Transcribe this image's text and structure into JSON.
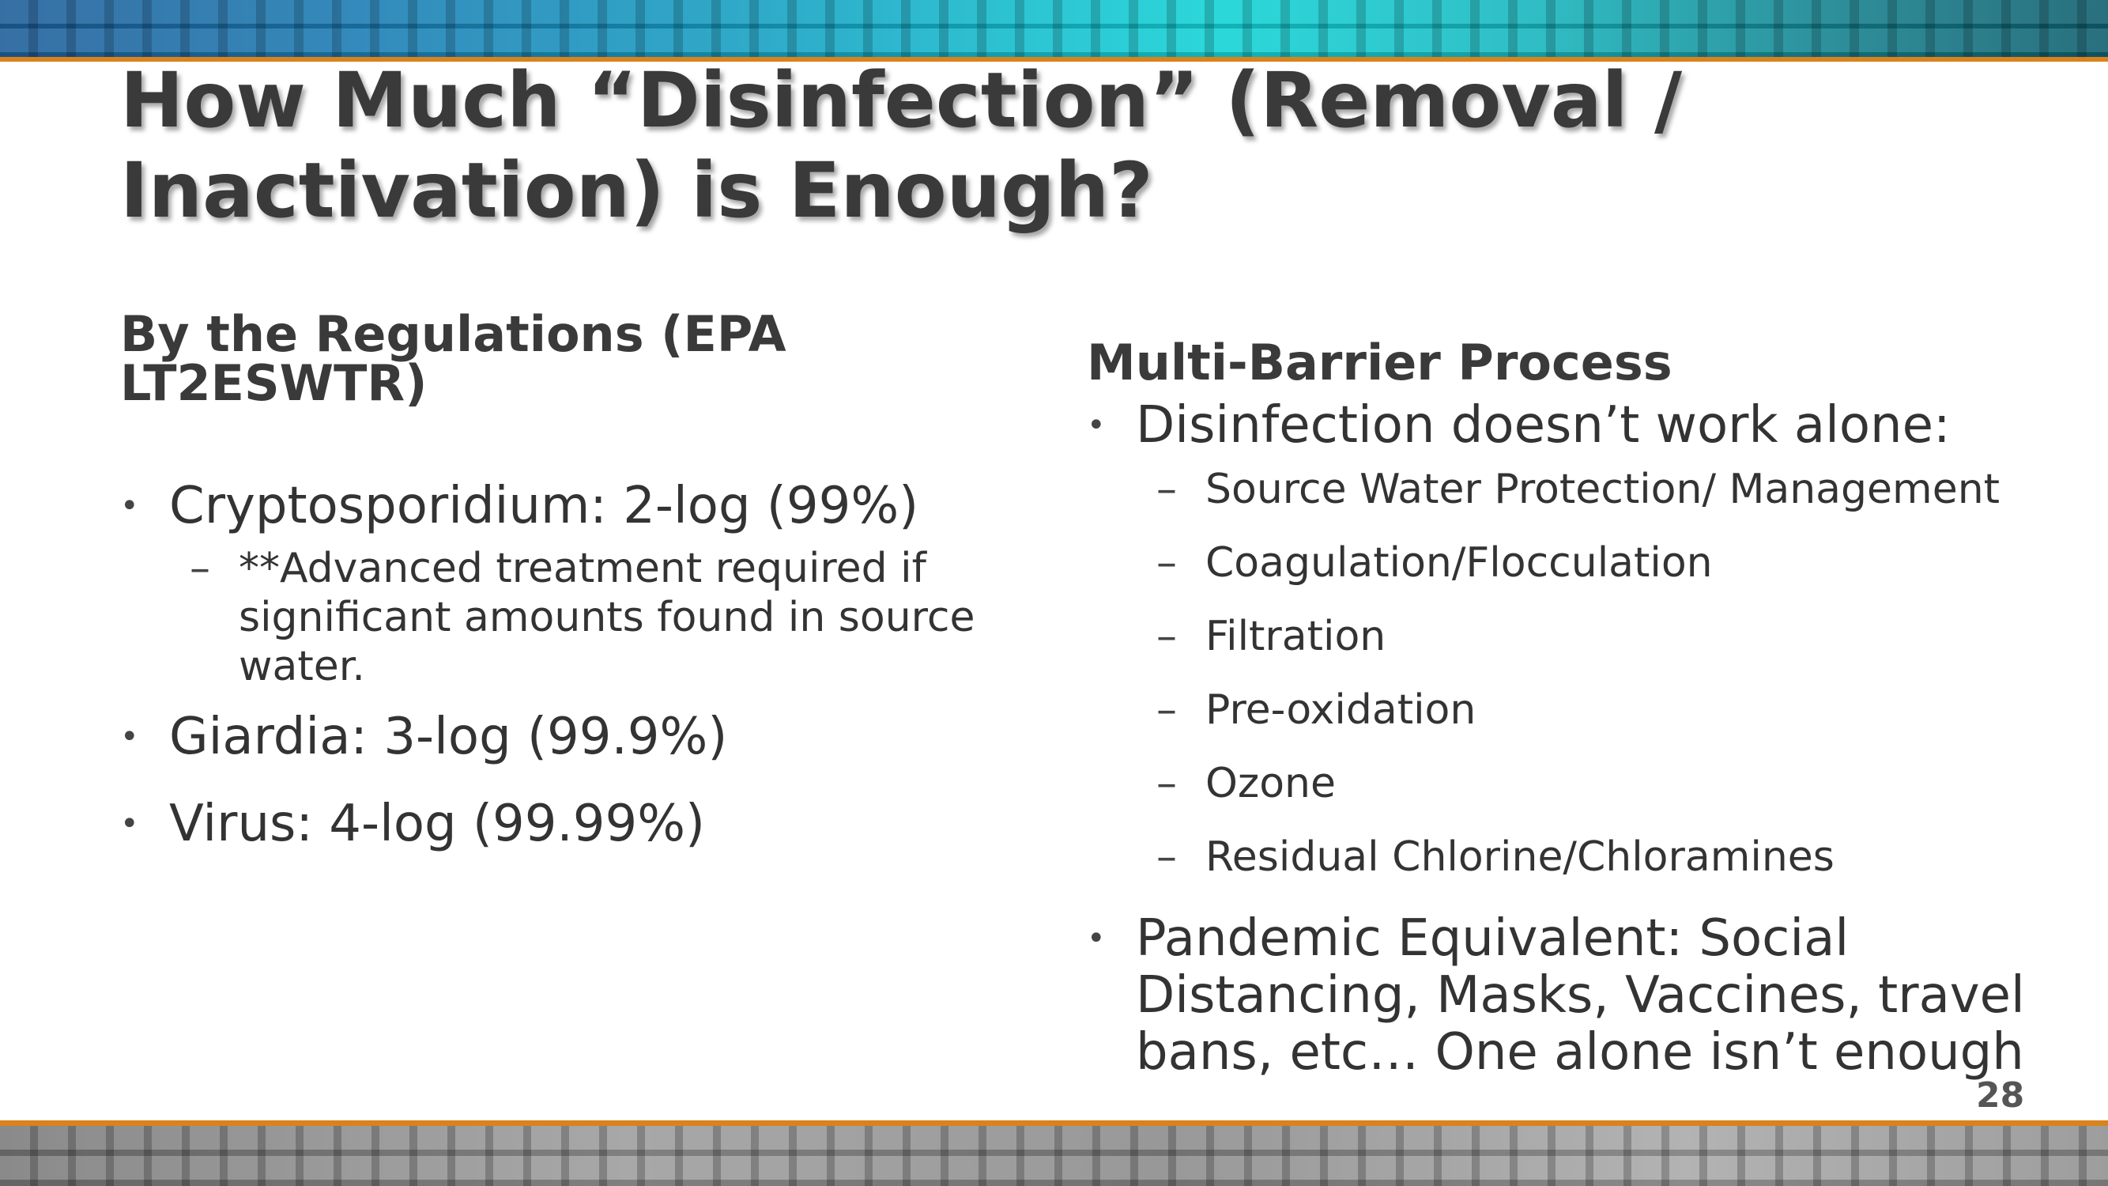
{
  "title": "How Much “Disinfection” (Removal / Inactivation) is Enough?",
  "left": {
    "heading": "By the Regulations (EPA LT2ESWTR)",
    "bullets": [
      {
        "text": "Cryptosporidium: 2-log (99%)",
        "subs": [
          "**Advanced treatment required if significant amounts found in source water."
        ]
      },
      {
        "text": "Giardia: 3-log (99.9%)"
      },
      {
        "text": "Virus: 4-log (99.99%)"
      }
    ]
  },
  "right": {
    "heading": "Multi-Barrier Process",
    "bullets": [
      {
        "text": "Disinfection doesn’t work alone:",
        "subs": [
          "Source Water Protection/ Management",
          "Coagulation/Flocculation",
          "Filtration",
          "Pre-oxidation",
          "Ozone",
          "Residual Chlorine/Chloramines"
        ]
      },
      {
        "text": "Pandemic Equivalent: Social Distancing, Masks, Vaccines, travel bans, etc… One alone isn’t enough"
      }
    ]
  },
  "slide_number": "28",
  "colors": {
    "accent_orange": "#d9821e",
    "band_teal": "#14d3d6",
    "band_gray": "#9c9c9c",
    "text": "#333333"
  }
}
